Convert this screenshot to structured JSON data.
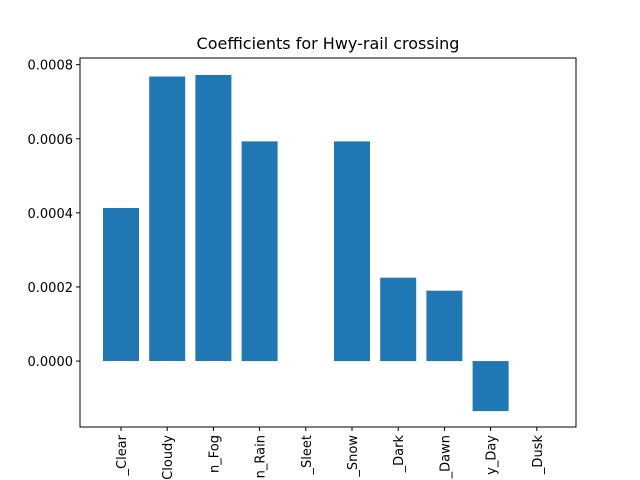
{
  "chart_data": {
    "type": "bar",
    "title": "Coefficients for Hwy-rail crossing",
    "xlabel": "",
    "ylabel": "",
    "categories": [
      "_Clear",
      "Cloudy",
      "n_Fog",
      "n_Rain",
      "_Sleet",
      "_Snow",
      "_Dark",
      "_Dawn",
      "y_Day",
      "_Dusk"
    ],
    "values": [
      0.000413,
      0.000768,
      0.000772,
      0.000593,
      0,
      0.000593,
      0.000225,
      0.00019,
      -0.000135,
      0
    ],
    "ylim": [
      -0.000178,
      0.000818
    ],
    "yticks": [
      0,
      0.0002,
      0.0004,
      0.0006,
      0.0008
    ],
    "ytick_labels": [
      "0.0000",
      "0.0002",
      "0.0004",
      "0.0006",
      "0.0008"
    ],
    "bar_color": "#1f77b4",
    "grid": false
  }
}
